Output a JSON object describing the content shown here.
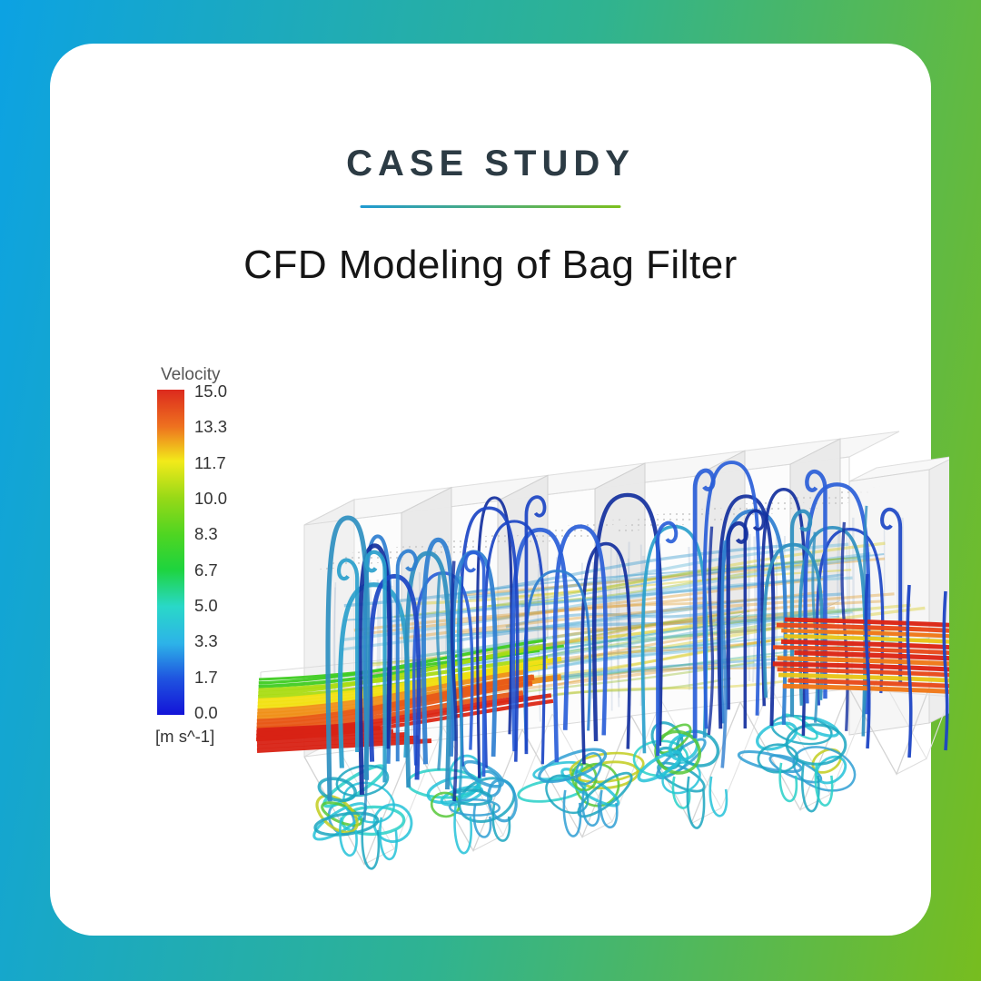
{
  "page": {
    "background_gradient": [
      "#0ca2e3",
      "#2fb391",
      "#77bd1f"
    ],
    "card_color": "#ffffff"
  },
  "header": {
    "eyebrow": "CASE STUDY",
    "eyebrow_color": "#2c3b44",
    "divider_gradient": [
      "#1f9ad2",
      "#7cc01e"
    ],
    "title": "CFD Modeling of Bag Filter"
  },
  "figure": {
    "legend": {
      "title": "Velocity",
      "unit": "[m s^-1]",
      "range": [
        0.0,
        15.0
      ],
      "ticks": [
        "15.0",
        "13.3",
        "11.7",
        "10.0",
        "8.3",
        "6.7",
        "5.0",
        "3.3",
        "1.7",
        "0.0"
      ],
      "colorscale": [
        {
          "value": 15.0,
          "color": "#dc2a1e"
        },
        {
          "value": 13.3,
          "color": "#ee711f"
        },
        {
          "value": 11.7,
          "color": "#f2ea1a"
        },
        {
          "value": 10.0,
          "color": "#97d917"
        },
        {
          "value": 8.3,
          "color": "#4ed522"
        },
        {
          "value": 6.7,
          "color": "#1ed43e"
        },
        {
          "value": 5.0,
          "color": "#29d8c8"
        },
        {
          "value": 3.3,
          "color": "#2db3e8"
        },
        {
          "value": 1.7,
          "color": "#1f55e0"
        },
        {
          "value": 0.0,
          "color": "#1313d8"
        }
      ]
    },
    "palettes": {
      "loops": [
        "#14309e",
        "#1c45c4",
        "#2a5ed8",
        "#2e7ed0",
        "#2aa0cc",
        "#2e8fc0"
      ],
      "swirls": [
        "#25c2d8",
        "#1ba6c0",
        "#2f9fd4",
        "#28d0c8",
        "#57c838",
        "#c2cc1e"
      ],
      "inlet": [
        "#3fcc22",
        "#aadc14",
        "#f2e214",
        "#f0911a",
        "#e85a18",
        "#dc2816"
      ],
      "outlet": [
        "#dc2515",
        "#e8491a",
        "#f07818",
        "#e8c418"
      ],
      "haze": [
        "#48b89a",
        "#9ec23a",
        "#d8ce28",
        "#e0a23c",
        "#62b8d8",
        "#3a9ad0"
      ],
      "bags": "#a9b9d2",
      "structure": "#d6d6d6"
    }
  }
}
